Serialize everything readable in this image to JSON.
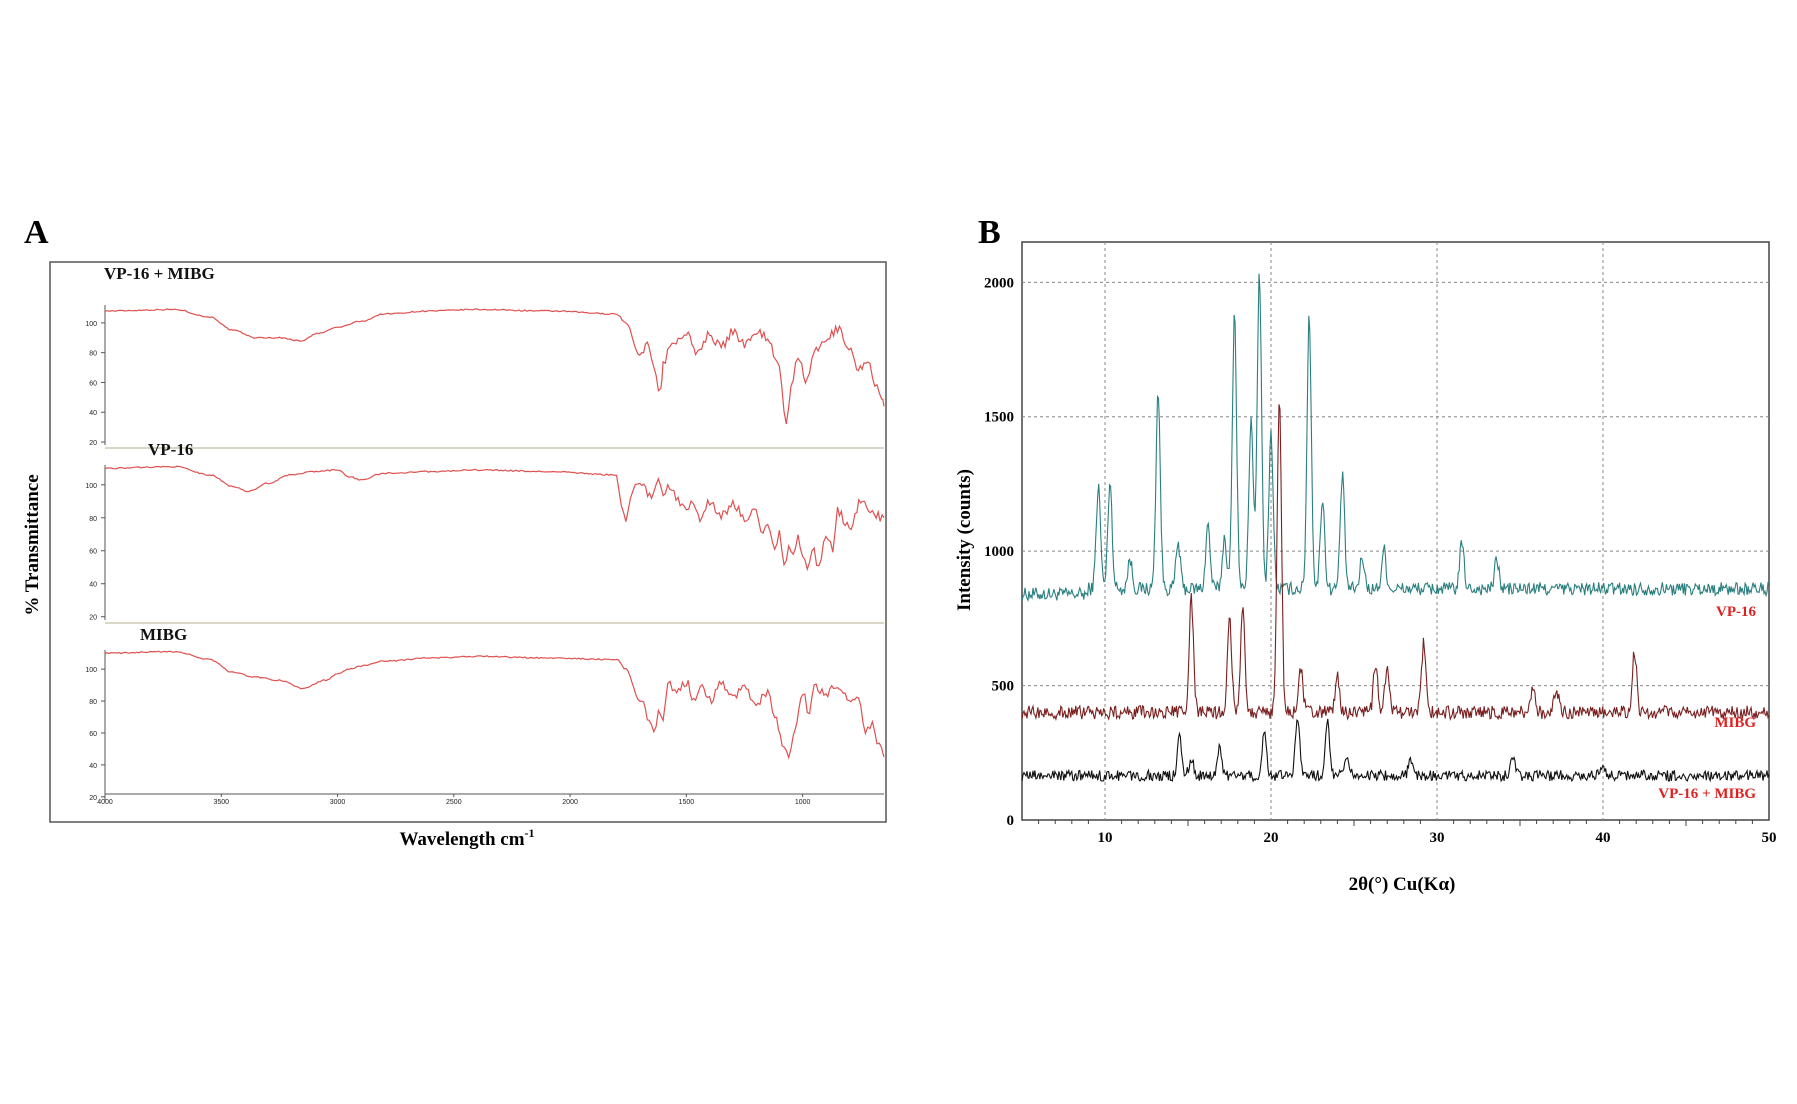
{
  "panels": {
    "a": "A",
    "b": "B"
  },
  "chart_data": [
    {
      "type": "line",
      "panel": "A",
      "xlabel": "Wavelength cm",
      "xlabel_sup": "-1",
      "ylabel": "% Transmittance",
      "xlim": [
        4000,
        650
      ],
      "x_ticks": [
        4000,
        3500,
        3000,
        2500,
        2000,
        1500,
        1000
      ],
      "y_ticks": [
        20,
        40,
        60,
        80,
        100
      ],
      "ylim": [
        18,
        112
      ],
      "grid": false,
      "color": "#e05050",
      "series": [
        {
          "name": "VP-16 + MIBG",
          "x": [
            4000,
            3700,
            3550,
            3450,
            3350,
            3250,
            3160,
            3080,
            3000,
            2900,
            2800,
            2600,
            2400,
            2100,
            1800,
            1760,
            1700,
            1660,
            1640,
            1610,
            1600,
            1570,
            1500,
            1460,
            1400,
            1350,
            1300,
            1250,
            1200,
            1150,
            1100,
            1070,
            1050,
            1020,
            980,
            950,
            900,
            850,
            800,
            760,
            720,
            690,
            660,
            650
          ],
          "y": [
            108,
            109,
            104,
            95,
            90,
            90,
            88,
            93,
            97,
            101,
            106,
            108,
            109,
            108,
            106,
            100,
            78,
            86,
            70,
            53,
            72,
            85,
            93,
            80,
            92,
            84,
            94,
            86,
            95,
            90,
            70,
            30,
            55,
            78,
            60,
            80,
            88,
            96,
            84,
            68,
            76,
            60,
            48,
            44
          ]
        },
        {
          "name": "VP-16",
          "x": [
            4000,
            3700,
            3550,
            3450,
            3380,
            3300,
            3200,
            3100,
            3000,
            2950,
            2900,
            2800,
            2600,
            2400,
            2100,
            1800,
            1780,
            1760,
            1740,
            1720,
            1700,
            1650,
            1620,
            1600,
            1580,
            1500,
            1480,
            1450,
            1400,
            1350,
            1300,
            1250,
            1200,
            1180,
            1150,
            1120,
            1100,
            1080,
            1060,
            1040,
            1020,
            1000,
            980,
            960,
            930,
            900,
            870,
            850,
            800,
            750,
            700,
            650
          ],
          "y": [
            110,
            111,
            106,
            99,
            96,
            101,
            106,
            108,
            109,
            105,
            103,
            107,
            108,
            109,
            108,
            106,
            88,
            78,
            92,
            100,
            101,
            92,
            104,
            96,
            98,
            84,
            92,
            80,
            90,
            82,
            88,
            80,
            86,
            70,
            78,
            62,
            70,
            50,
            64,
            55,
            68,
            58,
            46,
            62,
            50,
            70,
            62,
            84,
            74,
            90,
            82,
            80
          ]
        },
        {
          "name": "MIBG",
          "x": [
            4000,
            3700,
            3550,
            3450,
            3350,
            3250,
            3150,
            3050,
            3000,
            2950,
            2900,
            2800,
            2600,
            2400,
            2100,
            1800,
            1760,
            1700,
            1660,
            1640,
            1620,
            1600,
            1580,
            1550,
            1500,
            1460,
            1440,
            1400,
            1350,
            1300,
            1250,
            1200,
            1150,
            1120,
            1080,
            1060,
            1040,
            1000,
            970,
            950,
            900,
            850,
            800,
            760,
            730,
            700,
            680,
            660,
            650
          ],
          "y": [
            110,
            111,
            106,
            98,
            95,
            93,
            88,
            93,
            97,
            100,
            102,
            105,
            107,
            108,
            107,
            106,
            100,
            80,
            70,
            60,
            72,
            66,
            92,
            86,
            92,
            78,
            90,
            80,
            92,
            82,
            90,
            78,
            86,
            70,
            50,
            44,
            60,
            86,
            70,
            90,
            84,
            90,
            80,
            82,
            60,
            66,
            52,
            50,
            45
          ]
        }
      ]
    },
    {
      "type": "line",
      "panel": "B",
      "xlabel": "2θ(°) Cu(Kα)",
      "ylabel": "Intensity (counts)",
      "xlim": [
        5,
        50
      ],
      "ylim": [
        0,
        2150
      ],
      "x_ticks": [
        10,
        20,
        30,
        40,
        50
      ],
      "y_ticks": [
        0,
        500,
        1000,
        1500,
        2000
      ],
      "grid": true,
      "legend": "right-side labels",
      "series": [
        {
          "name": "VP-16",
          "color": "#2a7f7f",
          "label_color": "#e02020",
          "baseline": 860,
          "noise": 25,
          "peaks": [
            [
              9.6,
              1240
            ],
            [
              10.3,
              1260
            ],
            [
              11.5,
              970
            ],
            [
              13.2,
              1600
            ],
            [
              14.4,
              1030
            ],
            [
              16.2,
              1100
            ],
            [
              17.2,
              1050
            ],
            [
              17.8,
              1890
            ],
            [
              18.8,
              1500
            ],
            [
              19.3,
              2040
            ],
            [
              20.0,
              1440
            ],
            [
              22.3,
              1880
            ],
            [
              23.1,
              1200
            ],
            [
              24.3,
              1280
            ],
            [
              25.5,
              980
            ],
            [
              26.8,
              1010
            ],
            [
              31.5,
              1030
            ],
            [
              33.6,
              970
            ]
          ]
        },
        {
          "name": "MIBG",
          "color": "#7a1f1f",
          "label_color": "#e02020",
          "baseline": 400,
          "noise": 25,
          "peaks": [
            [
              15.2,
              820
            ],
            [
              17.5,
              750
            ],
            [
              18.3,
              800
            ],
            [
              20.5,
              1580
            ],
            [
              21.8,
              560
            ],
            [
              24.0,
              530
            ],
            [
              26.3,
              580
            ],
            [
              27.0,
              560
            ],
            [
              29.2,
              660
            ],
            [
              35.8,
              500
            ],
            [
              37.2,
              490
            ],
            [
              41.9,
              630
            ]
          ]
        },
        {
          "name": "VP-16 + MIBG",
          "color": "#111111",
          "label_color": "#e02020",
          "baseline": 165,
          "noise": 20,
          "peaks": [
            [
              14.5,
              310
            ],
            [
              15.2,
              230
            ],
            [
              16.9,
              270
            ],
            [
              19.6,
              320
            ],
            [
              21.6,
              390
            ],
            [
              23.4,
              380
            ],
            [
              24.6,
              240
            ],
            [
              28.4,
              220
            ],
            [
              34.6,
              240
            ],
            [
              40.0,
              210
            ]
          ]
        }
      ]
    }
  ]
}
